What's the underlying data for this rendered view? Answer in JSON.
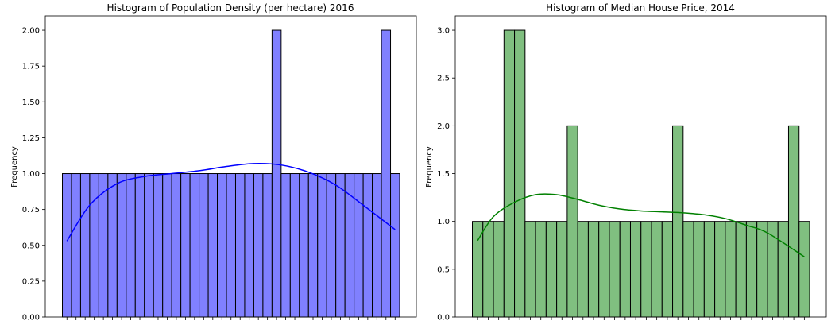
{
  "colors": {
    "left_bar_fill": "#8080ff",
    "left_kde": "#0000ff",
    "right_bar_fill": "#80bf80",
    "right_kde": "#008000",
    "bar_edge": "#000000"
  },
  "chart_data": [
    {
      "type": "bar",
      "title": "Histogram of Population Density (per hectare) 2016",
      "xlabel": "",
      "ylabel": "Frequency",
      "ylim": [
        0,
        2.1
      ],
      "yticks": [
        0.0,
        0.25,
        0.5,
        0.75,
        1.0,
        1.25,
        1.5,
        1.75,
        2.0
      ],
      "ytick_labels": [
        "0.00",
        "0.25",
        "0.50",
        "0.75",
        "1.00",
        "1.25",
        "1.50",
        "1.75",
        "2.00"
      ],
      "bin_counts": [
        1,
        1,
        1,
        1,
        1,
        1,
        1,
        1,
        1,
        1,
        1,
        1,
        1,
        1,
        1,
        1,
        1,
        1,
        1,
        1,
        1,
        1,
        1,
        2,
        1,
        1,
        1,
        1,
        1,
        1,
        1,
        1,
        1,
        1,
        1,
        2,
        1
      ],
      "kde": {
        "x_bins": [
          0.5,
          3,
          6,
          9,
          12,
          15,
          18,
          21,
          24,
          27,
          30,
          33,
          36.5
        ],
        "y": [
          0.53,
          0.78,
          0.93,
          0.98,
          1.0,
          1.02,
          1.05,
          1.07,
          1.06,
          1.01,
          0.92,
          0.78,
          0.61
        ]
      },
      "grid": false,
      "legend": "none"
    },
    {
      "type": "bar",
      "title": "Histogram of Median House Price, 2014",
      "xlabel": "",
      "ylabel": "Frequency",
      "ylim": [
        0,
        3.15
      ],
      "yticks": [
        0.0,
        0.5,
        1.0,
        1.5,
        2.0,
        2.5,
        3.0
      ],
      "ytick_labels": [
        "0.0",
        "0.5",
        "1.0",
        "1.5",
        "2.0",
        "2.5",
        "3.0"
      ],
      "bin_counts": [
        1,
        1,
        1,
        3,
        3,
        1,
        1,
        1,
        1,
        2,
        1,
        1,
        1,
        1,
        1,
        1,
        1,
        1,
        1,
        2,
        1,
        1,
        1,
        1,
        1,
        1,
        1,
        1,
        1,
        1,
        2,
        1
      ],
      "kde": {
        "x_bins": [
          0.5,
          2,
          4,
          6,
          8,
          10,
          12,
          14,
          16,
          18,
          20,
          22,
          24,
          26,
          28,
          31.5
        ],
        "y": [
          0.8,
          1.05,
          1.2,
          1.28,
          1.28,
          1.23,
          1.17,
          1.13,
          1.11,
          1.1,
          1.09,
          1.07,
          1.03,
          0.96,
          0.88,
          0.63
        ]
      },
      "grid": false,
      "legend": "none"
    }
  ]
}
